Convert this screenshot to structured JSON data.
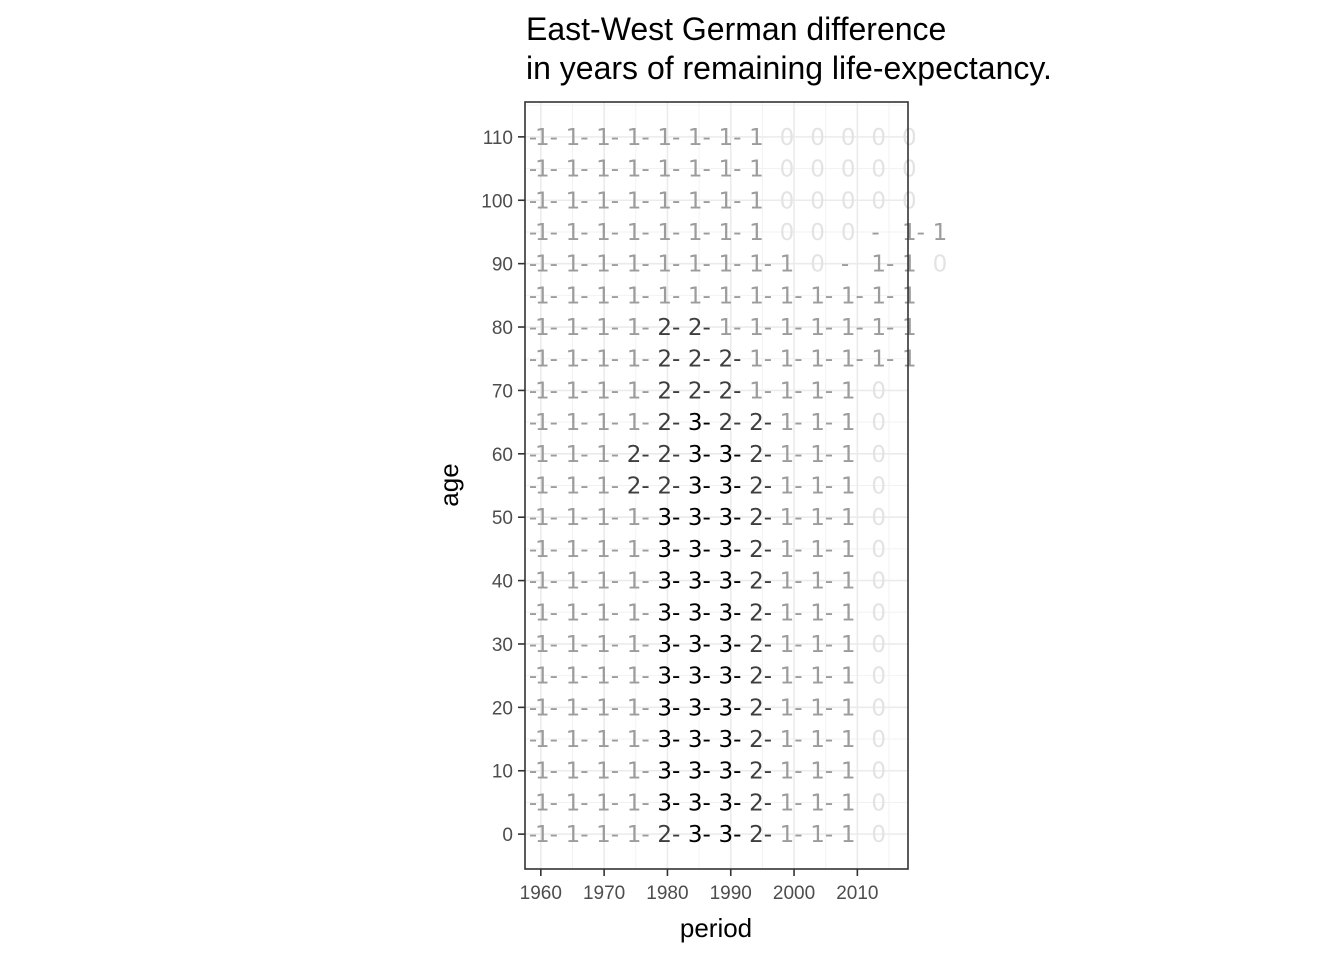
{
  "chart_data": {
    "type": "table",
    "title_lines": [
      "East-West German difference",
      "in years of remaining life-expectancy."
    ],
    "xlabel": "period",
    "ylabel": "age",
    "xlim": [
      1957.5,
      2018
    ],
    "ylim": [
      -5.5,
      115.5
    ],
    "x_ticks": [
      1960,
      1970,
      1980,
      1990,
      2000,
      2010
    ],
    "y_ticks": [
      0,
      10,
      20,
      30,
      40,
      50,
      60,
      70,
      80,
      90,
      100,
      110
    ],
    "grid": true,
    "legend": "none",
    "periods": [
      1957.5,
      1962.5,
      1967.5,
      1972.5,
      1977.5,
      1982.5,
      1987.5,
      1992.5,
      1997.5,
      2002.5,
      2007.5,
      2012.5,
      2017.5
    ],
    "ages": [
      110,
      105,
      100,
      95,
      90,
      85,
      80,
      75,
      70,
      65,
      60,
      55,
      50,
      45,
      40,
      35,
      30,
      25,
      20,
      15,
      10,
      5,
      0
    ],
    "values": [
      [
        "-",
        "1-",
        "1-",
        "1-",
        "1-",
        "1-",
        "1-",
        "1-",
        "1",
        "0",
        "0",
        "0",
        "0",
        "0"
      ],
      [
        "-",
        "1-",
        "1-",
        "1-",
        "1-",
        "1-",
        "1-",
        "1-",
        "1",
        "0",
        "0",
        "0",
        "0",
        "0"
      ],
      [
        "-",
        "1-",
        "1-",
        "1-",
        "1-",
        "1-",
        "1-",
        "1-",
        "1",
        "0",
        "0",
        "0",
        "0",
        "0"
      ],
      [
        "-",
        "1-",
        "1-",
        "1-",
        "1-",
        "1-",
        "1-",
        "1-",
        "1",
        "0",
        "0",
        "0",
        "-",
        "1-",
        "1"
      ],
      [
        "-",
        "1-",
        "1-",
        "1-",
        "1-",
        "1-",
        "1-",
        "1-",
        "1-",
        "1",
        "0",
        "-",
        "1-",
        "1",
        "0"
      ],
      [
        "-",
        "1-",
        "1-",
        "1-",
        "1-",
        "1-",
        "1-",
        "1-",
        "1-",
        "1-",
        "1-",
        "1-",
        "1-",
        "1"
      ],
      [
        "-",
        "1-",
        "1-",
        "1-",
        "1-",
        "2-",
        "2-",
        "1-",
        "1-",
        "1-",
        "1-",
        "1-",
        "1-",
        "1"
      ],
      [
        "-",
        "1-",
        "1-",
        "1-",
        "1-",
        "2-",
        "2-",
        "2-",
        "1-",
        "1-",
        "1-",
        "1-",
        "1-",
        "1"
      ],
      [
        "-",
        "1-",
        "1-",
        "1-",
        "1-",
        "2-",
        "2-",
        "2-",
        "1-",
        "1-",
        "1-",
        "1",
        "0"
      ],
      [
        "-",
        "1-",
        "1-",
        "1-",
        "1-",
        "2-",
        "3-",
        "2-",
        "2-",
        "1-",
        "1-",
        "1",
        "0"
      ],
      [
        "-",
        "1-",
        "1-",
        "1-",
        "2-",
        "2-",
        "3-",
        "3-",
        "2-",
        "1-",
        "1-",
        "1",
        "0"
      ],
      [
        "-",
        "1-",
        "1-",
        "1-",
        "2-",
        "2-",
        "3-",
        "3-",
        "2-",
        "1-",
        "1-",
        "1",
        "0"
      ],
      [
        "-",
        "1-",
        "1-",
        "1-",
        "1-",
        "3-",
        "3-",
        "3-",
        "2-",
        "1-",
        "1-",
        "1",
        "0"
      ],
      [
        "-",
        "1-",
        "1-",
        "1-",
        "1-",
        "3-",
        "3-",
        "3-",
        "2-",
        "1-",
        "1-",
        "1",
        "0"
      ],
      [
        "-",
        "1-",
        "1-",
        "1-",
        "1-",
        "3-",
        "3-",
        "3-",
        "2-",
        "1-",
        "1-",
        "1",
        "0"
      ],
      [
        "-",
        "1-",
        "1-",
        "1-",
        "1-",
        "3-",
        "3-",
        "3-",
        "2-",
        "1-",
        "1-",
        "1",
        "0"
      ],
      [
        "-",
        "1-",
        "1-",
        "1-",
        "1-",
        "3-",
        "3-",
        "3-",
        "2-",
        "1-",
        "1-",
        "1",
        "0"
      ],
      [
        "-",
        "1-",
        "1-",
        "1-",
        "1-",
        "3-",
        "3-",
        "3-",
        "2-",
        "1-",
        "1-",
        "1",
        "0"
      ],
      [
        "-",
        "1-",
        "1-",
        "1-",
        "1-",
        "3-",
        "3-",
        "3-",
        "2-",
        "1-",
        "1-",
        "1",
        "0"
      ],
      [
        "-",
        "1-",
        "1-",
        "1-",
        "1-",
        "3-",
        "3-",
        "3-",
        "2-",
        "1-",
        "1-",
        "1",
        "0"
      ],
      [
        "-",
        "1-",
        "1-",
        "1-",
        "1-",
        "3-",
        "3-",
        "3-",
        "2-",
        "1-",
        "1-",
        "1",
        "0"
      ],
      [
        "-",
        "1-",
        "1-",
        "1-",
        "1-",
        "3-",
        "3-",
        "3-",
        "2-",
        "1-",
        "1-",
        "1",
        "0"
      ],
      [
        "-",
        "1-",
        "1-",
        "1-",
        "1-",
        "2-",
        "3-",
        "3-",
        "2-",
        "1-",
        "1-",
        "1",
        "0"
      ]
    ],
    "colors": {
      "panel_border": "#333333",
      "grid_major": "#ebebeb",
      "grid_minor": "#f2f2f2",
      "text_zero": "#e3e3e3",
      "text_one": "#9c9c9c",
      "text_two": "#3e3e3e",
      "text_three": "#000000"
    }
  }
}
